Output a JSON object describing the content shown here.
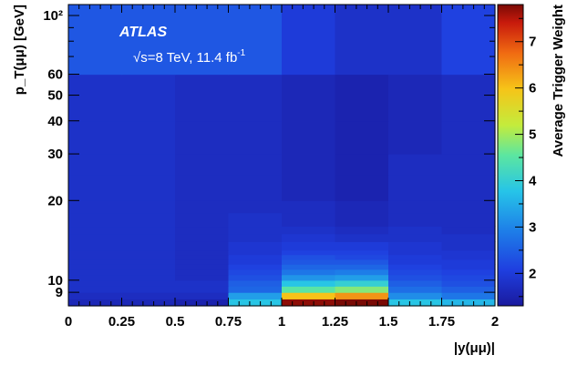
{
  "chart_data": {
    "type": "heatmap",
    "title": "",
    "experiment_label": "ATLAS",
    "energy_label": "√s=8 TeV, 11.4 fb",
    "energy_label_sup": "-1",
    "xlabel": "|y(μμ)|",
    "ylabel": "p_T(μμ) [GeV]",
    "colorbar_label": "Average Trigger Weight",
    "x_edges": [
      0,
      0.25,
      0.5,
      0.75,
      1.0,
      1.25,
      1.5,
      1.75,
      2.0
    ],
    "x_tick_labels": [
      "0",
      "0.25",
      "0.5",
      "0.75",
      "1",
      "1.25",
      "1.5",
      "1.75",
      "2"
    ],
    "y_scale": "log",
    "ylim": [
      8,
      110
    ],
    "y_edges": [
      8,
      8.5,
      9,
      9.5,
      10,
      10.5,
      11,
      11.5,
      12,
      12.5,
      13,
      14,
      15,
      16,
      18,
      20,
      25,
      30,
      40,
      60,
      110
    ],
    "y_tick_labels": [
      "9",
      "10",
      "20",
      "30",
      "40",
      "50",
      "60",
      "10²"
    ],
    "zlim": [
      1.3,
      7.8
    ],
    "z_ticks": [
      "2",
      "3",
      "4",
      "5",
      "6",
      "7"
    ],
    "z_values": [
      [
        1.6,
        1.6,
        1.5,
        3.8,
        7.7,
        7.8,
        3.8,
        3.6
      ],
      [
        1.7,
        1.7,
        1.7,
        3.3,
        6.0,
        6.4,
        3.1,
        2.8
      ],
      [
        1.8,
        1.8,
        1.8,
        2.6,
        4.5,
        4.8,
        2.7,
        2.5
      ],
      [
        1.8,
        1.8,
        1.8,
        2.5,
        3.8,
        4.0,
        2.5,
        2.3
      ],
      [
        1.8,
        1.8,
        1.7,
        2.3,
        3.2,
        3.3,
        2.3,
        2.2
      ],
      [
        1.8,
        1.8,
        1.7,
        2.2,
        2.8,
        2.9,
        2.2,
        2.1
      ],
      [
        1.8,
        1.8,
        1.7,
        2.1,
        2.6,
        2.6,
        2.1,
        2.0
      ],
      [
        1.8,
        1.8,
        1.7,
        2.0,
        2.4,
        2.4,
        2.0,
        2.0
      ],
      [
        1.8,
        1.8,
        1.7,
        2.0,
        2.3,
        2.2,
        2.0,
        1.9
      ],
      [
        1.8,
        1.8,
        1.7,
        1.9,
        2.1,
        2.1,
        1.9,
        1.9
      ],
      [
        1.8,
        1.8,
        1.7,
        1.9,
        2.0,
        2.0,
        1.9,
        1.8
      ],
      [
        1.8,
        1.8,
        1.7,
        1.8,
        1.9,
        1.8,
        1.8,
        1.8
      ],
      [
        1.8,
        1.8,
        1.7,
        1.8,
        1.8,
        1.7,
        1.8,
        1.7
      ],
      [
        1.8,
        1.8,
        1.7,
        1.8,
        1.7,
        1.6,
        1.7,
        1.7
      ],
      [
        1.8,
        1.8,
        1.7,
        1.7,
        1.7,
        1.6,
        1.7,
        1.7
      ],
      [
        1.8,
        1.8,
        1.7,
        1.7,
        1.6,
        1.5,
        1.7,
        1.7
      ],
      [
        1.8,
        1.8,
        1.7,
        1.7,
        1.6,
        1.5,
        1.7,
        1.7
      ],
      [
        1.8,
        1.8,
        1.7,
        1.7,
        1.6,
        1.5,
        1.6,
        1.7
      ],
      [
        1.8,
        1.8,
        1.7,
        1.7,
        1.6,
        1.5,
        1.6,
        1.7
      ],
      [
        2.4,
        2.4,
        2.4,
        2.4,
        2.0,
        1.8,
        1.8,
        2.1
      ]
    ]
  }
}
